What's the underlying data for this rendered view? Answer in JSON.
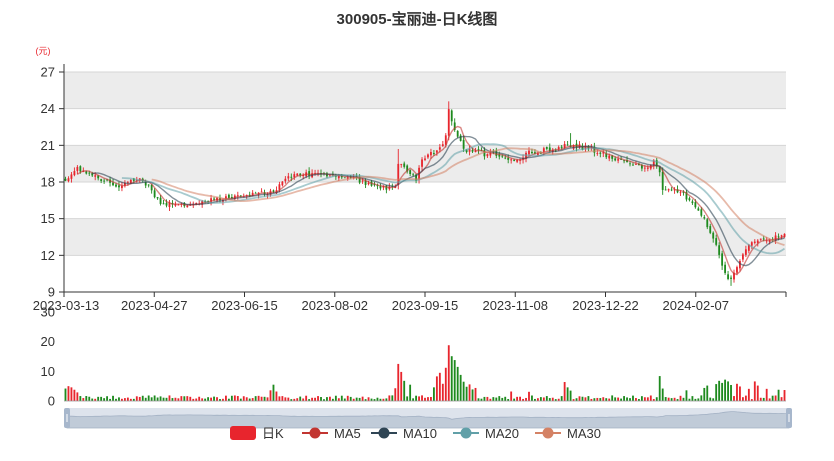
{
  "chart_data": {
    "type": "candlestick",
    "title": "300905-宝丽迪-日K线图",
    "ylabel": "(元)",
    "ylim": [
      9,
      27
    ],
    "yticks": [
      9,
      12,
      15,
      18,
      21,
      24,
      27
    ],
    "vol_ylim": [
      0,
      30
    ],
    "vol_yticks": [
      0,
      10,
      20,
      30
    ],
    "x_tick_labels": [
      "2023-03-13",
      "2023-04-27",
      "2023-06-15",
      "2023-08-02",
      "2023-09-15",
      "2023-11-08",
      "2023-12-22",
      "2024-02-07"
    ],
    "start_date": "2023-03-13",
    "anchors": [
      [
        0,
        18.2
      ],
      [
        4,
        19.1
      ],
      [
        10,
        18.4
      ],
      [
        18,
        17.6
      ],
      [
        25,
        18.3
      ],
      [
        28,
        17.6
      ],
      [
        32,
        16.2
      ],
      [
        38,
        16.1
      ],
      [
        50,
        16.6
      ],
      [
        60,
        16.9
      ],
      [
        70,
        17.2
      ],
      [
        75,
        18.5
      ],
      [
        85,
        18.7
      ],
      [
        95,
        18.5
      ],
      [
        100,
        18.0
      ],
      [
        106,
        17.5
      ],
      [
        111,
        17.6
      ],
      [
        112,
        19.6
      ],
      [
        118,
        18.2
      ],
      [
        120,
        19.8
      ],
      [
        125,
        20.6
      ],
      [
        128,
        21.6
      ],
      [
        129,
        23.8
      ],
      [
        131,
        22.2
      ],
      [
        135,
        20.5
      ],
      [
        145,
        20.2
      ],
      [
        152,
        19.8
      ],
      [
        157,
        20.5
      ],
      [
        163,
        20.6
      ],
      [
        170,
        21.0
      ],
      [
        177,
        20.7
      ],
      [
        185,
        19.8
      ],
      [
        195,
        19.2
      ],
      [
        198,
        19.6
      ],
      [
        200,
        18.9
      ],
      [
        201,
        17.4
      ],
      [
        207,
        17.2
      ],
      [
        213,
        15.8
      ],
      [
        218,
        13.5
      ],
      [
        222,
        10.5
      ],
      [
        224,
        9.9
      ],
      [
        227,
        11.6
      ],
      [
        231,
        13.2
      ],
      [
        236,
        13.3
      ],
      [
        240,
        13.5
      ],
      [
        242,
        13.6
      ]
    ],
    "volume_spikes": [
      [
        0,
        4.2
      ],
      [
        1,
        5.0
      ],
      [
        2,
        4.6
      ],
      [
        3,
        3.8
      ],
      [
        4,
        2.9
      ],
      [
        69,
        3.6
      ],
      [
        70,
        5.5
      ],
      [
        71,
        3.2
      ],
      [
        111,
        4.3
      ],
      [
        112,
        12.5
      ],
      [
        113,
        9.8
      ],
      [
        114,
        6.8
      ],
      [
        116,
        5.5
      ],
      [
        124,
        4.6
      ],
      [
        125,
        8.3
      ],
      [
        126,
        9.5
      ],
      [
        127,
        5.8
      ],
      [
        128,
        11.2
      ],
      [
        129,
        18.8
      ],
      [
        130,
        15.1
      ],
      [
        131,
        13.8
      ],
      [
        132,
        11.5
      ],
      [
        133,
        8.8
      ],
      [
        134,
        6.5
      ],
      [
        135,
        4.8
      ],
      [
        136,
        5.6
      ],
      [
        137,
        3.9
      ],
      [
        138,
        4.4
      ],
      [
        150,
        3.2
      ],
      [
        156,
        3.1
      ],
      [
        168,
        6.4
      ],
      [
        169,
        4.6
      ],
      [
        170,
        3.5
      ],
      [
        200,
        8.4
      ],
      [
        201,
        4.2
      ],
      [
        209,
        3.6
      ],
      [
        215,
        4.4
      ],
      [
        216,
        5.2
      ],
      [
        219,
        5.7
      ],
      [
        220,
        6.8
      ],
      [
        221,
        6.1
      ],
      [
        222,
        7.2
      ],
      [
        223,
        6.6
      ],
      [
        224,
        5.4
      ],
      [
        226,
        5.8
      ],
      [
        227,
        4.9
      ],
      [
        230,
        4.1
      ],
      [
        232,
        6.6
      ],
      [
        233,
        5.2
      ],
      [
        236,
        4.1
      ],
      [
        240,
        3.8
      ],
      [
        242,
        3.7
      ]
    ],
    "legend": [
      "日K",
      "MA5",
      "MA10",
      "MA20",
      "MA30"
    ],
    "legend_position": "bottom",
    "grid": true,
    "colors": {
      "up": "#e8252d",
      "down": "#1e8a1e",
      "ma5": "#c23531",
      "ma10": "#2f4554",
      "ma20": "#61a0a8",
      "ma30": "#d48265",
      "band": "#ececec",
      "axis": "#333333",
      "grid": "#d6d6d6",
      "slider_bg": "#dde3ec",
      "slider_handle": "#a7b7cc"
    }
  }
}
